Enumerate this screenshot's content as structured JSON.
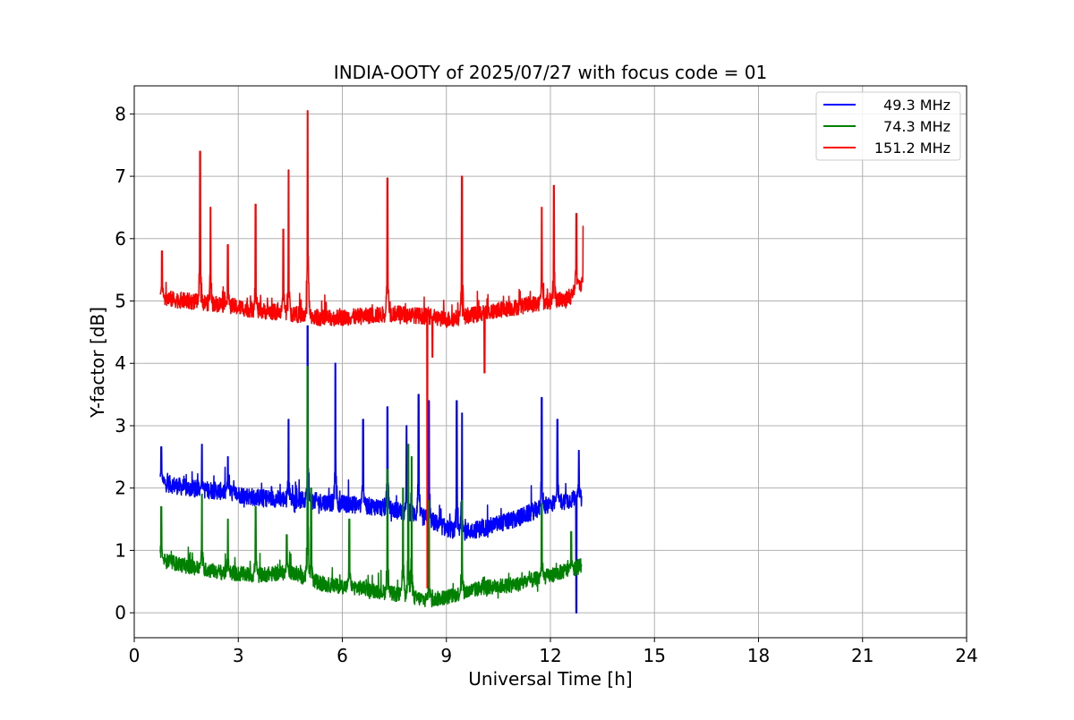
{
  "chart_data": {
    "type": "line",
    "title": "INDIA-OOTY of 2025/07/27 with focus code = 01",
    "xlabel": "Universal Time [h]",
    "ylabel": "Y-factor [dB]",
    "xlim": [
      0,
      24
    ],
    "ylim": [
      -0.4,
      8.45
    ],
    "xticks": [
      0,
      3,
      6,
      9,
      12,
      15,
      18,
      21,
      24
    ],
    "yticks": [
      0,
      1,
      2,
      3,
      4,
      5,
      6,
      7,
      8
    ],
    "xtick_labels": [
      "0",
      "3",
      "6",
      "9",
      "12",
      "15",
      "18",
      "21",
      "24"
    ],
    "ytick_labels": [
      "0",
      "1",
      "2",
      "3",
      "4",
      "5",
      "6",
      "7",
      "8"
    ],
    "grid": true,
    "legend_position": "top-right",
    "series": [
      {
        "name": "49.3 MHz",
        "color": "#0000ff",
        "base": [
          [
            0.75,
            2.1
          ],
          [
            1.5,
            2.0
          ],
          [
            2.5,
            1.95
          ],
          [
            3.5,
            1.85
          ],
          [
            5.0,
            1.8
          ],
          [
            6.0,
            1.75
          ],
          [
            7.0,
            1.7
          ],
          [
            8.0,
            1.6
          ],
          [
            8.5,
            1.5
          ],
          [
            9.0,
            1.35
          ],
          [
            9.5,
            1.3
          ],
          [
            10.0,
            1.35
          ],
          [
            11.0,
            1.5
          ],
          [
            12.0,
            1.75
          ],
          [
            12.9,
            1.85
          ]
        ],
        "noise": 0.14,
        "spikes": [
          [
            0.78,
            2.66
          ],
          [
            1.95,
            2.7
          ],
          [
            2.7,
            2.5
          ],
          [
            4.45,
            3.1
          ],
          [
            5.0,
            4.6
          ],
          [
            5.8,
            4.0
          ],
          [
            6.6,
            3.1
          ],
          [
            7.3,
            3.3
          ],
          [
            7.85,
            3.0
          ],
          [
            8.2,
            3.5
          ],
          [
            8.5,
            3.4
          ],
          [
            9.3,
            3.4
          ],
          [
            9.45,
            3.2
          ],
          [
            11.75,
            3.45
          ],
          [
            12.2,
            3.1
          ],
          [
            12.75,
            0.0
          ],
          [
            12.82,
            2.6
          ],
          [
            12.97,
            1.4
          ]
        ]
      },
      {
        "name": "74.3 MHz",
        "color": "#008000",
        "base": [
          [
            0.75,
            0.85
          ],
          [
            1.5,
            0.75
          ],
          [
            2.5,
            0.65
          ],
          [
            3.5,
            0.6
          ],
          [
            4.5,
            0.65
          ],
          [
            5.5,
            0.45
          ],
          [
            6.5,
            0.4
          ],
          [
            7.5,
            0.3
          ],
          [
            8.5,
            0.2
          ],
          [
            9.0,
            0.25
          ],
          [
            10.0,
            0.4
          ],
          [
            11.0,
            0.45
          ],
          [
            12.0,
            0.6
          ],
          [
            12.9,
            0.75
          ]
        ],
        "noise": 0.12,
        "spikes": [
          [
            0.78,
            1.7
          ],
          [
            1.95,
            1.9
          ],
          [
            2.7,
            1.5
          ],
          [
            3.5,
            1.7
          ],
          [
            4.4,
            1.25
          ],
          [
            5.0,
            3.95
          ],
          [
            5.1,
            2.0
          ],
          [
            6.2,
            1.5
          ],
          [
            7.3,
            2.3
          ],
          [
            7.75,
            2.0
          ],
          [
            7.9,
            2.7
          ],
          [
            8.0,
            2.5
          ],
          [
            8.5,
            1.8
          ],
          [
            9.45,
            1.8
          ],
          [
            11.75,
            1.75
          ],
          [
            12.6,
            1.3
          ],
          [
            12.95,
            1.1
          ]
        ]
      },
      {
        "name": "151.2 MHz",
        "color": "#ff0000",
        "base": [
          [
            0.75,
            5.05
          ],
          [
            1.5,
            5.0
          ],
          [
            2.5,
            4.95
          ],
          [
            3.5,
            4.85
          ],
          [
            4.5,
            4.8
          ],
          [
            5.5,
            4.72
          ],
          [
            6.5,
            4.75
          ],
          [
            7.5,
            4.8
          ],
          [
            8.5,
            4.75
          ],
          [
            9.0,
            4.7
          ],
          [
            9.5,
            4.75
          ],
          [
            10.5,
            4.85
          ],
          [
            11.5,
            4.95
          ],
          [
            12.5,
            5.05
          ],
          [
            12.95,
            5.3
          ]
        ],
        "noise": 0.13,
        "spikes": [
          [
            0.8,
            5.8
          ],
          [
            1.9,
            7.4
          ],
          [
            2.2,
            6.5
          ],
          [
            2.7,
            5.9
          ],
          [
            3.5,
            6.55
          ],
          [
            4.3,
            6.15
          ],
          [
            4.45,
            7.1
          ],
          [
            5.0,
            8.05
          ],
          [
            7.3,
            6.97
          ],
          [
            8.45,
            0.4
          ],
          [
            8.6,
            4.1
          ],
          [
            9.45,
            7.0
          ],
          [
            10.1,
            3.85
          ],
          [
            11.75,
            6.5
          ],
          [
            12.1,
            6.85
          ],
          [
            12.75,
            6.4
          ],
          [
            12.95,
            6.2
          ]
        ]
      }
    ]
  }
}
